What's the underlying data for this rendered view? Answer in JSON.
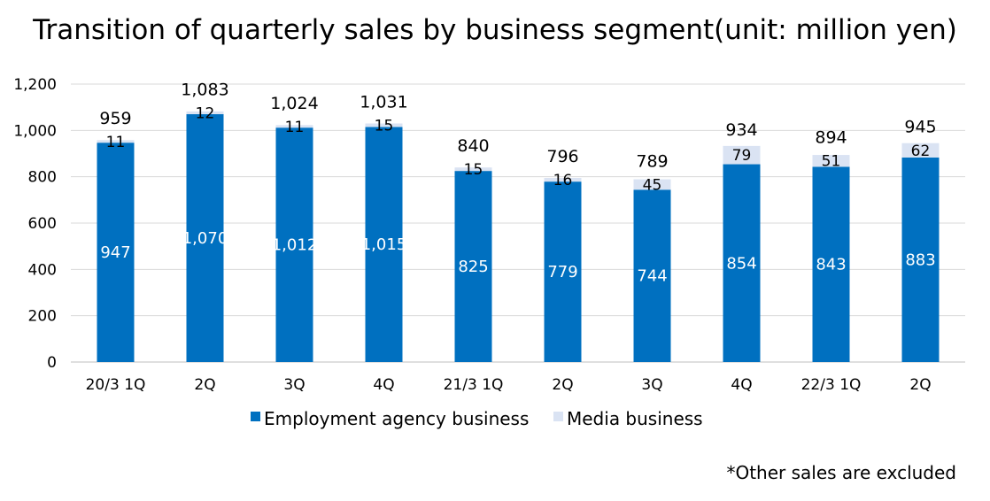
{
  "title": "Transition of quarterly sales by business segment(unit: million yen)",
  "footnote": "*Other sales are excluded",
  "colors": {
    "employment": "#0070C0",
    "media": "#DAE3F3",
    "grid": "#D9D9D9",
    "axis": "#BFBFBF"
  },
  "chart_data": {
    "type": "bar",
    "stacked": true,
    "categories": [
      "20/3 1Q",
      "2Q",
      "3Q",
      "4Q",
      "21/3 1Q",
      "2Q",
      "3Q",
      "4Q",
      "22/3 1Q",
      "2Q"
    ],
    "series": [
      {
        "name": "Employment agency business",
        "values": [
          947,
          1070,
          1012,
          1015,
          825,
          779,
          744,
          854,
          843,
          883
        ],
        "labels": [
          "947",
          "1,070",
          "1,012",
          "1,015",
          "825",
          "779",
          "744",
          "854",
          "843",
          "883"
        ]
      },
      {
        "name": "Media business",
        "values": [
          11,
          12,
          11,
          15,
          15,
          16,
          45,
          79,
          51,
          62
        ],
        "labels": [
          "11",
          "12",
          "11",
          "15",
          "15",
          "16",
          "45",
          "79",
          "51",
          "62"
        ]
      }
    ],
    "totals": [
      "959",
      "1,083",
      "1,024",
      "1,031",
      "840",
      "796",
      "789",
      "934",
      "894",
      "945"
    ],
    "yticks": [
      "0",
      "200",
      "400",
      "600",
      "800",
      "1,000",
      "1,200"
    ],
    "ylim": [
      0,
      1200
    ],
    "grid": true,
    "legend": "bottom"
  }
}
